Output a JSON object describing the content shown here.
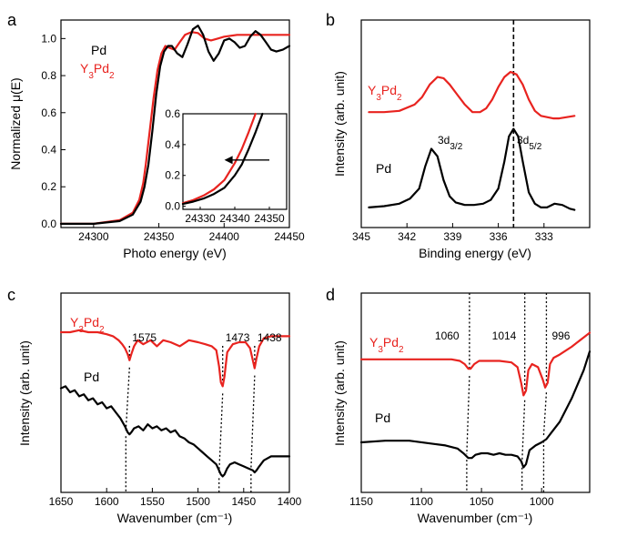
{
  "colors": {
    "pd": "#000000",
    "y3pd2": "#e8231f"
  },
  "chart_data": [
    {
      "panel": "a",
      "type": "line",
      "xlabel": "Photo energy (eV)",
      "ylabel": "Normalized μ(E)",
      "xlim": [
        24275,
        24450
      ],
      "ylim": [
        -0.02,
        1.1
      ],
      "xticks": [
        24300,
        24350,
        24400,
        24450
      ],
      "yticks": [
        0.0,
        0.2,
        0.4,
        0.6,
        0.8,
        1.0
      ],
      "legend": [
        {
          "name": "Pd",
          "color": "#000000"
        },
        {
          "name": "Y3Pd2",
          "base": "Y",
          "sub1": "3",
          "mid": "Pd",
          "sub2": "2",
          "color": "#e8231f"
        }
      ],
      "series": [
        {
          "name": "Y3Pd2",
          "color": "#e8231f",
          "x": [
            24275,
            24300,
            24320,
            24330,
            24335,
            24338,
            24340,
            24343,
            24346,
            24349,
            24352,
            24355,
            24358,
            24362,
            24366,
            24370,
            24375,
            24380,
            24385,
            24390,
            24395,
            24400,
            24405,
            24410,
            24415,
            24420,
            24425,
            24430,
            24435,
            24440,
            24445,
            24450
          ],
          "y": [
            0.0,
            0.0,
            0.02,
            0.06,
            0.13,
            0.22,
            0.32,
            0.5,
            0.68,
            0.83,
            0.92,
            0.96,
            0.95,
            0.94,
            0.98,
            1.02,
            1.035,
            1.03,
            1.0,
            0.99,
            1.0,
            1.01,
            1.015,
            1.02,
            1.02,
            1.02,
            1.02,
            1.02,
            1.02,
            1.02,
            1.02,
            1.02
          ]
        },
        {
          "name": "Pd",
          "color": "#000000",
          "x": [
            24275,
            24300,
            24320,
            24330,
            24336,
            24339,
            24342,
            24345,
            24348,
            24351,
            24354,
            24357,
            24360,
            24364,
            24368,
            24372,
            24376,
            24380,
            24384,
            24388,
            24392,
            24396,
            24400,
            24404,
            24408,
            24412,
            24416,
            24420,
            24424,
            24428,
            24432,
            24436,
            24440,
            24445,
            24450
          ],
          "y": [
            0.0,
            0.0,
            0.015,
            0.05,
            0.12,
            0.2,
            0.32,
            0.5,
            0.7,
            0.85,
            0.93,
            0.96,
            0.96,
            0.92,
            0.9,
            0.97,
            1.05,
            1.07,
            1.02,
            0.93,
            0.88,
            0.92,
            0.99,
            1.0,
            0.98,
            0.95,
            0.96,
            1.01,
            1.04,
            1.02,
            0.98,
            0.94,
            0.93,
            0.94,
            0.96
          ]
        }
      ],
      "inset": {
        "xlim": [
          24325,
          24355
        ],
        "ylim": [
          -0.02,
          0.6
        ],
        "xticks": [
          24330,
          24340,
          24350
        ],
        "yticks": [
          0.0,
          0.2,
          0.4,
          0.6
        ],
        "series": [
          {
            "name": "Y3Pd2",
            "color": "#e8231f",
            "x": [
              24325,
              24328,
              24331,
              24334,
              24337,
              24340,
              24342,
              24344,
              24346
            ],
            "y": [
              0.02,
              0.04,
              0.07,
              0.11,
              0.17,
              0.28,
              0.37,
              0.48,
              0.6
            ]
          },
          {
            "name": "Pd",
            "color": "#000000",
            "x": [
              24325,
              24328,
              24331,
              24334,
              24337,
              24340,
              24342,
              24344,
              24346,
              24348
            ],
            "y": [
              0.015,
              0.03,
              0.05,
              0.08,
              0.12,
              0.2,
              0.27,
              0.37,
              0.48,
              0.6
            ]
          }
        ],
        "arrow_x": [
          24350,
          24337
        ],
        "arrow_y": 0.3
      }
    },
    {
      "panel": "b",
      "type": "line",
      "xlabel": "Binding energy (eV)",
      "ylabel": "Intensity (arb. unit)",
      "xlim": [
        345,
        330
      ],
      "xticks": [
        345,
        342,
        339,
        336,
        333
      ],
      "dashed_x": 335.0,
      "labels": [
        {
          "name": "Y3Pd2",
          "base": "Y",
          "sub1": "3",
          "mid": "Pd",
          "sub2": "2",
          "color": "#e8231f"
        },
        {
          "name": "Pd",
          "color": "#000000"
        }
      ],
      "annotations": [
        {
          "text": "3d3/2",
          "base": "3d",
          "sub": "3/2",
          "x": 340.3
        },
        {
          "text": "3d5/2",
          "base": "3d",
          "sub": "5/2",
          "x": 335.0
        }
      ],
      "series": [
        {
          "name": "Y3Pd2",
          "color": "#e8231f",
          "x": [
            344.5,
            343.5,
            342.5,
            341.5,
            341,
            340.5,
            340,
            339.6,
            339.2,
            338.7,
            338.2,
            337.7,
            337.2,
            336.8,
            336.4,
            336,
            335.6,
            335.2,
            334.8,
            334.4,
            334,
            333.6,
            333.2,
            332.8,
            332.4,
            332,
            331.5,
            331
          ],
          "y": [
            0.1,
            0.1,
            0.11,
            0.16,
            0.22,
            0.32,
            0.38,
            0.37,
            0.32,
            0.24,
            0.16,
            0.1,
            0.1,
            0.13,
            0.2,
            0.3,
            0.38,
            0.42,
            0.4,
            0.32,
            0.2,
            0.11,
            0.07,
            0.06,
            0.05,
            0.05,
            0.06,
            0.07
          ]
        },
        {
          "name": "Pd",
          "color": "#000000",
          "x": [
            344.5,
            343.5,
            342.5,
            341.8,
            341.2,
            340.8,
            340.4,
            340,
            339.6,
            339.2,
            338.8,
            338.2,
            337.6,
            337,
            336.5,
            336,
            335.6,
            335.3,
            335,
            334.7,
            334.4,
            334,
            333.6,
            333.2,
            332.8,
            332.3,
            331.8,
            331.3,
            331
          ],
          "y": [
            0.03,
            0.04,
            0.06,
            0.1,
            0.18,
            0.36,
            0.5,
            0.44,
            0.25,
            0.12,
            0.07,
            0.05,
            0.05,
            0.06,
            0.09,
            0.18,
            0.4,
            0.6,
            0.66,
            0.6,
            0.4,
            0.15,
            0.06,
            0.03,
            0.03,
            0.06,
            0.05,
            0.02,
            0.01
          ]
        }
      ]
    },
    {
      "panel": "c",
      "type": "line",
      "xlabel": "Wavenumber (cm⁻¹)",
      "ylabel": "Intensity (arb. unit)",
      "xlim": [
        1650,
        1400
      ],
      "xticks": [
        1650,
        1600,
        1550,
        1500,
        1450,
        1400
      ],
      "labels": [
        {
          "name": "Y3Pd2",
          "base": "Y",
          "sub1": "3",
          "mid": "Pd",
          "sub2": "2",
          "color": "#e8231f"
        },
        {
          "name": "Pd",
          "color": "#000000"
        }
      ],
      "annotations": [
        {
          "text": "1575",
          "x": 1575
        },
        {
          "text": "1473",
          "x": 1473
        },
        {
          "text": "1438",
          "x": 1438
        }
      ],
      "series": [
        {
          "name": "Y3Pd2",
          "color": "#e8231f",
          "x": [
            1650,
            1640,
            1630,
            1620,
            1610,
            1600,
            1593,
            1587,
            1583,
            1580,
            1577,
            1575,
            1573,
            1570,
            1566,
            1560,
            1552,
            1545,
            1538,
            1530,
            1520,
            1510,
            1500,
            1492,
            1485,
            1480,
            1477,
            1475,
            1473,
            1471,
            1468,
            1462,
            1455,
            1448,
            1443,
            1440,
            1438,
            1436,
            1433,
            1428,
            1420,
            1410,
            1400
          ],
          "y": [
            0.8,
            0.8,
            0.81,
            0.8,
            0.8,
            0.79,
            0.78,
            0.76,
            0.74,
            0.72,
            0.69,
            0.66,
            0.69,
            0.73,
            0.76,
            0.74,
            0.76,
            0.73,
            0.76,
            0.75,
            0.73,
            0.76,
            0.75,
            0.74,
            0.73,
            0.71,
            0.63,
            0.55,
            0.53,
            0.58,
            0.7,
            0.74,
            0.75,
            0.75,
            0.72,
            0.66,
            0.62,
            0.67,
            0.73,
            0.77,
            0.78,
            0.78,
            0.78
          ]
        },
        {
          "name": "Pd",
          "color": "#000000",
          "x": [
            1650,
            1645,
            1640,
            1635,
            1630,
            1625,
            1620,
            1615,
            1610,
            1605,
            1600,
            1595,
            1590,
            1585,
            1580,
            1577,
            1575,
            1573,
            1570,
            1565,
            1560,
            1555,
            1550,
            1545,
            1540,
            1535,
            1530,
            1525,
            1520,
            1515,
            1510,
            1505,
            1500,
            1495,
            1490,
            1485,
            1480,
            1477,
            1475,
            1473,
            1471,
            1468,
            1465,
            1460,
            1455,
            1450,
            1445,
            1440,
            1438,
            1436,
            1433,
            1428,
            1420,
            1412,
            1405,
            1400
          ],
          "y": [
            0.52,
            0.53,
            0.5,
            0.51,
            0.48,
            0.49,
            0.46,
            0.47,
            0.44,
            0.45,
            0.42,
            0.43,
            0.4,
            0.37,
            0.33,
            0.3,
            0.29,
            0.3,
            0.32,
            0.33,
            0.31,
            0.34,
            0.32,
            0.33,
            0.31,
            0.32,
            0.3,
            0.31,
            0.28,
            0.27,
            0.25,
            0.24,
            0.22,
            0.2,
            0.18,
            0.16,
            0.14,
            0.11,
            0.09,
            0.08,
            0.09,
            0.12,
            0.14,
            0.15,
            0.14,
            0.13,
            0.12,
            0.11,
            0.1,
            0.11,
            0.13,
            0.16,
            0.18,
            0.18,
            0.18,
            0.18
          ]
        }
      ]
    },
    {
      "panel": "d",
      "type": "line",
      "xlabel": "Wavenumber (cm⁻¹)",
      "ylabel": "Intensity (arb. unit)",
      "xlim": [
        1150,
        960
      ],
      "xticks": [
        1150,
        1100,
        1050,
        1000
      ],
      "labels": [
        {
          "name": "Y3Pd2",
          "base": "Y",
          "sub1": "3",
          "mid": "Pd",
          "sub2": "2",
          "color": "#e8231f"
        },
        {
          "name": "Pd",
          "color": "#000000"
        }
      ],
      "annotations": [
        {
          "text": "1060",
          "x": 1060
        },
        {
          "text": "1014",
          "x": 1014
        },
        {
          "text": "996",
          "x": 996
        }
      ],
      "series": [
        {
          "name": "Y3Pd2",
          "color": "#e8231f",
          "x": [
            1150,
            1130,
            1110,
            1090,
            1075,
            1068,
            1064,
            1061,
            1059,
            1056,
            1052,
            1045,
            1035,
            1025,
            1020,
            1017,
            1015,
            1013,
            1011,
            1008,
            1003,
            999,
            997,
            995,
            993,
            990,
            985,
            975,
            965,
            960
          ],
          "y": [
            0.85,
            0.85,
            0.85,
            0.85,
            0.85,
            0.84,
            0.82,
            0.79,
            0.79,
            0.82,
            0.84,
            0.84,
            0.84,
            0.83,
            0.8,
            0.7,
            0.62,
            0.65,
            0.78,
            0.82,
            0.8,
            0.72,
            0.67,
            0.7,
            0.82,
            0.86,
            0.88,
            0.93,
            0.99,
            1.02
          ]
        },
        {
          "name": "Pd",
          "color": "#000000",
          "x": [
            1150,
            1130,
            1110,
            1090,
            1080,
            1070,
            1065,
            1061,
            1058,
            1055,
            1050,
            1045,
            1040,
            1035,
            1030,
            1025,
            1020,
            1017,
            1015,
            1013,
            1010,
            1005,
            1000,
            996,
            992,
            985,
            975,
            965,
            960
          ],
          "y": [
            0.32,
            0.33,
            0.33,
            0.31,
            0.3,
            0.28,
            0.25,
            0.22,
            0.22,
            0.24,
            0.25,
            0.25,
            0.24,
            0.25,
            0.24,
            0.24,
            0.23,
            0.2,
            0.16,
            0.18,
            0.27,
            0.3,
            0.32,
            0.34,
            0.38,
            0.45,
            0.6,
            0.78,
            0.9
          ]
        }
      ]
    }
  ]
}
